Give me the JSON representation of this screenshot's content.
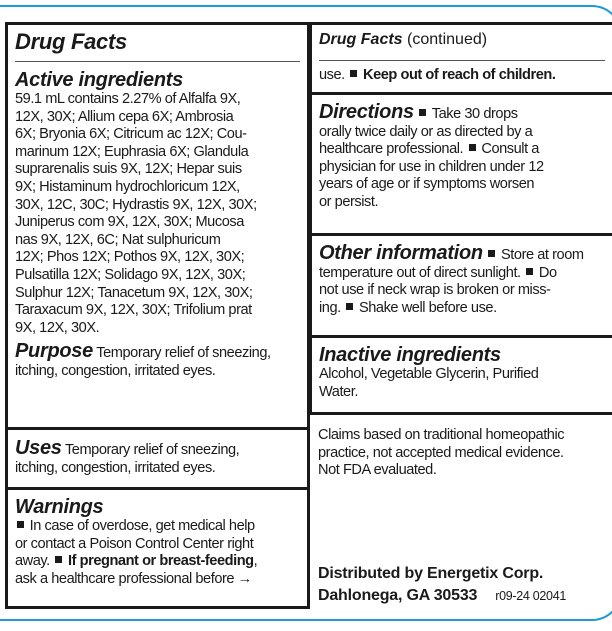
{
  "colors": {
    "border_blue": "#1e9ad6",
    "text": "#1a1a1a"
  },
  "left": {
    "title": "Drug Facts",
    "active": {
      "heading": "Active ingredients",
      "lines": [
        "59.1 mL contains 2.27% of Alfalfa 9X,",
        "12X, 30X; Allium cepa 6X; Ambrosia",
        "6X; Bryonia 6X; Citricum ac 12X; Cou-",
        "marinum 12X; Euphrasia 6X; Glandula",
        "suprarenalis suis 9X, 12X; Hepar suis",
        "9X; Histaminum hydrochloricum 12X,",
        "30X, 12C, 30C; Hydrastis 9X, 12X, 30X;",
        "Juniperus com 9X, 12X, 30X; Mucosa",
        "nas 9X, 12X, 6C; Nat sulphuricum",
        "12X; Phos 12X; Pothos 9X, 12X, 30X;",
        "Pulsatilla 12X; Solidago 9X, 12X, 30X;",
        "Sulphur 12X; Tanacetum 9X, 12X, 30X;",
        "Taraxacum 9X, 12X, 30X; Trifolium prat",
        "9X, 12X, 30X."
      ]
    },
    "purpose": {
      "heading": "Purpose",
      "line1": " Temporary relief of sneezing,",
      "line2": "itching, congestion, irritated eyes."
    },
    "uses": {
      "heading": "Uses",
      "line1": " Temporary relief of sneezing,",
      "line2": "itching, congestion, irritated eyes."
    },
    "warnings": {
      "heading": "Warnings",
      "l1": "In case of overdose, get medical help",
      "l2": "or contact a Poison Control Center right",
      "l3a": "away. ",
      "l3b": "If pregnant or breast-feeding",
      ",": ",",
      "l3c": ",",
      "l4": "ask a healthcare professional before →"
    }
  },
  "right": {
    "title": "Drug Facts",
    "title_suffix": " (continued)",
    "cont_a": "use. ",
    "cont_b": "Keep out of reach of children.",
    "directions": {
      "heading": "Directions",
      "l1": " Take 30 drops",
      "lines": [
        "orally twice daily or as directed by a"
      ],
      "l3a": "healthcare professional. ",
      "l3b": "Consult a",
      "rest": [
        "physician for use in children under 12",
        "years of age or if symptoms worsen",
        "or persist."
      ]
    },
    "other": {
      "heading": "Other information",
      "l1": " Store at room",
      "l2a": "temperature out of direct sunlight. ",
      "l2b": "Do",
      "l3": "not use if neck wrap is broken or miss-",
      "l4a": "ing. ",
      "l4b": "Shake well before use."
    },
    "inactive": {
      "heading": "Inactive ingredients",
      "lines": [
        "Alcohol, Vegetable Glycerin, Purified",
        "Water."
      ]
    },
    "claims": [
      "Claims based on traditional homeopathic",
      "practice, not accepted medical evidence.",
      "Not FDA evaluated."
    ],
    "distributor": {
      "line1": "Distributed by Energetix Corp.",
      "line2": "Dahlonega, GA 30533",
      "code": "r09-24 02041"
    }
  }
}
